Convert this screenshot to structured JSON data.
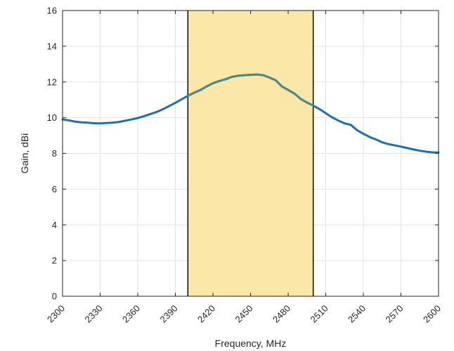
{
  "chart_data": {
    "type": "line",
    "title": "",
    "xlabel": "Frequency, MHz",
    "ylabel": "Gain, dBi",
    "xlim": [
      2300,
      2600
    ],
    "ylim": [
      0,
      16
    ],
    "x_ticks": [
      2300,
      2330,
      2360,
      2390,
      2420,
      2450,
      2480,
      2510,
      2540,
      2570,
      2600
    ],
    "y_ticks": [
      0,
      2,
      4,
      6,
      8,
      10,
      12,
      14,
      16
    ],
    "grid": true,
    "band": {
      "x_start": 2400,
      "x_end": 2500,
      "fill_color": "#fbe7a7",
      "edge_color": "#000000"
    },
    "series": [
      {
        "color": "#1f6fb0",
        "x": [
          2300,
          2305,
          2310,
          2315,
          2320,
          2325,
          2330,
          2335,
          2340,
          2345,
          2350,
          2355,
          2360,
          2365,
          2370,
          2375,
          2380,
          2385,
          2390,
          2395,
          2400,
          2405,
          2410,
          2415,
          2420,
          2425,
          2430,
          2435,
          2440,
          2445,
          2450,
          2455,
          2460,
          2465,
          2470,
          2475,
          2480,
          2485,
          2490,
          2495,
          2500,
          2505,
          2510,
          2515,
          2520,
          2525,
          2530,
          2535,
          2540,
          2545,
          2550,
          2555,
          2560,
          2565,
          2570,
          2575,
          2580,
          2585,
          2590,
          2595,
          2600
        ],
        "values": [
          9.9,
          9.85,
          9.78,
          9.74,
          9.72,
          9.69,
          9.68,
          9.7,
          9.72,
          9.76,
          9.83,
          9.9,
          9.98,
          10.08,
          10.2,
          10.32,
          10.47,
          10.65,
          10.83,
          11.03,
          11.22,
          11.4,
          11.55,
          11.75,
          11.93,
          12.05,
          12.15,
          12.28,
          12.35,
          12.38,
          12.4,
          12.42,
          12.38,
          12.25,
          12.1,
          11.75,
          11.55,
          11.35,
          11.05,
          10.85,
          10.68,
          10.48,
          10.25,
          10.02,
          9.84,
          9.68,
          9.6,
          9.3,
          9.1,
          8.92,
          8.78,
          8.62,
          8.52,
          8.45,
          8.38,
          8.3,
          8.22,
          8.15,
          8.1,
          8.06,
          8.05
        ]
      }
    ]
  }
}
